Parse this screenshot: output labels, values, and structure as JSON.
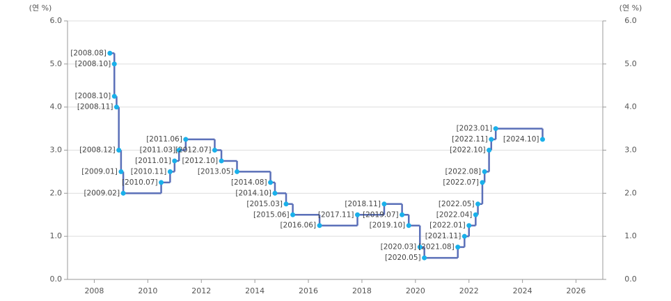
{
  "chart_data": {
    "type": "step",
    "y_axis_label": "(연 %)",
    "y2_axis_label": "(연 %)",
    "x": [
      2008.583,
      2008.75,
      2008.75,
      2008.833,
      2008.917,
      2009.0,
      2009.083,
      2010.5,
      2010.833,
      2011.0,
      2011.167,
      2011.417,
      2012.5,
      2012.75,
      2013.333,
      2014.583,
      2014.75,
      2015.167,
      2015.417,
      2016.417,
      2017.833,
      2018.833,
      2019.5,
      2019.75,
      2020.167,
      2020.333,
      2021.583,
      2021.833,
      2022.0,
      2022.25,
      2022.333,
      2022.5,
      2022.583,
      2022.75,
      2022.833,
      2023.0,
      2024.75
    ],
    "point_labels": [
      "[2008.08]",
      "[2008.10]",
      "[2008.10]",
      "[2008.11]",
      "[2008.12]",
      "[2009.01]",
      "[2009.02]",
      "[2010.07]",
      "[2010.11]",
      "[2011.01]",
      "[2011.03]",
      "[2011.06]",
      "[2012.07]",
      "[2012.10]",
      "[2013.05]",
      "[2014.08]",
      "[2014.10]",
      "[2015.03]",
      "[2015.06]",
      "[2016.06]",
      "[2017.11]",
      "[2018.11]",
      "[2019.07]",
      "[2019.10]",
      "[2020.03]",
      "[2020.05]",
      "[2021.08]",
      "[2021.11]",
      "[2022.01]",
      "[2022.04]",
      "[2022.05]",
      "[2022.07]",
      "[2022.08]",
      "[2022.10]",
      "[2022.11]",
      "[2023.01]",
      "[2024.10]"
    ],
    "values": [
      5.25,
      5.0,
      4.25,
      4.0,
      3.0,
      2.5,
      2.0,
      2.25,
      2.5,
      2.75,
      3.0,
      3.25,
      3.0,
      2.75,
      2.5,
      2.25,
      2.0,
      1.75,
      1.5,
      1.25,
      1.5,
      1.75,
      1.5,
      1.25,
      0.75,
      0.5,
      0.75,
      1.0,
      1.25,
      1.5,
      1.75,
      2.25,
      2.5,
      3.0,
      3.25,
      3.5,
      3.25
    ],
    "line_color": "#5a6fb8",
    "point_color": "#1ab0ea",
    "xlim": [
      2007,
      2027
    ],
    "xticks": [
      2008,
      2010,
      2012,
      2014,
      2016,
      2018,
      2020,
      2022,
      2024,
      2026
    ],
    "ylim": [
      0,
      6
    ],
    "yticks": [
      {
        "value": 0,
        "label": "0.0"
      },
      {
        "value": 1,
        "label": "1.0"
      },
      {
        "value": 2,
        "label": "2.0"
      },
      {
        "value": 3,
        "label": "3.0"
      },
      {
        "value": 4,
        "label": "4.0"
      },
      {
        "value": 5,
        "label": "5.0"
      },
      {
        "value": 6,
        "label": "6.0"
      }
    ],
    "y2lim": [
      0,
      6
    ],
    "y2ticks": [
      {
        "value": 0,
        "label": "0.0"
      },
      {
        "value": 1,
        "label": "1.0"
      },
      {
        "value": 2,
        "label": "2.0"
      },
      {
        "value": 3,
        "label": "3.0"
      },
      {
        "value": 4,
        "label": "4.0"
      },
      {
        "value": 5,
        "label": "5.0"
      },
      {
        "value": 6,
        "label": "6.0"
      }
    ],
    "grid": true
  }
}
